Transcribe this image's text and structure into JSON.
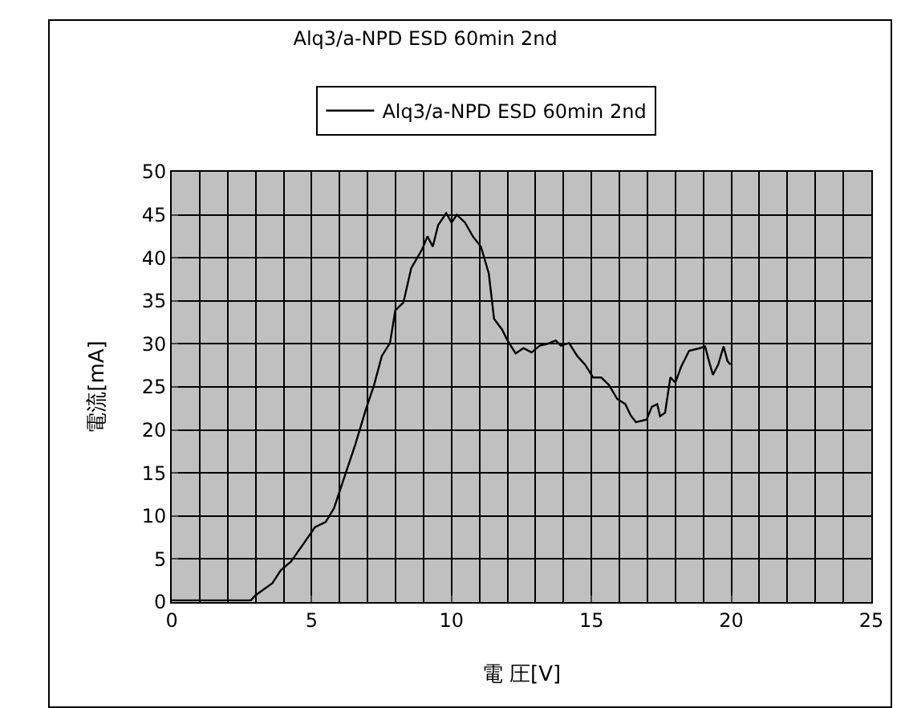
{
  "chart_data": {
    "type": "line",
    "title": "Alq3/a-NPD ESD 60min 2nd",
    "xlabel": "電 圧[V]",
    "ylabel": "電流[mA]",
    "series": [
      {
        "name": "Alq3/a-NPD ESD 60min 2nd",
        "color": "#000000",
        "x": [
          0,
          2.06,
          2.83,
          3.0,
          3.6,
          3.9,
          4.26,
          4.65,
          5.12,
          5.5,
          5.8,
          6.18,
          6.56,
          6.94,
          7.23,
          7.51,
          7.8,
          7.99,
          8.28,
          8.56,
          8.95,
          9.14,
          9.33,
          9.52,
          9.81,
          10.0,
          10.19,
          10.48,
          10.76,
          11.05,
          11.33,
          11.52,
          11.8,
          12.0,
          12.29,
          12.57,
          12.86,
          13.15,
          13.43,
          13.72,
          13.91,
          14.2,
          14.49,
          14.77,
          15.06,
          15.35,
          15.63,
          15.92,
          16.21,
          16.4,
          16.59,
          16.97,
          17.16,
          17.35,
          17.45,
          17.63,
          17.82,
          18.0,
          18.2,
          18.49,
          18.87,
          19.06,
          19.2,
          19.34,
          19.53,
          19.72,
          19.86,
          19.97
        ],
        "values": [
          0.2,
          0.2,
          0.2,
          0.8,
          2.2,
          3.7,
          4.7,
          6.5,
          8.7,
          9.3,
          10.9,
          14.6,
          18.3,
          22.4,
          25.2,
          28.6,
          30.1,
          33.9,
          34.8,
          38.8,
          41.0,
          42.5,
          41.3,
          43.8,
          45.2,
          44.1,
          45.0,
          44.1,
          42.5,
          41.3,
          38.2,
          32.9,
          31.7,
          30.4,
          28.9,
          29.5,
          29.0,
          29.8,
          30.0,
          30.4,
          29.8,
          30.1,
          28.6,
          27.6,
          26.1,
          26.1,
          25.2,
          23.6,
          23.0,
          21.7,
          20.9,
          21.2,
          22.7,
          23.0,
          21.6,
          22.0,
          26.1,
          25.5,
          27.3,
          29.2,
          29.5,
          29.7,
          28.0,
          26.4,
          27.6,
          29.7,
          28.0,
          27.6
        ]
      }
    ],
    "xlim": [
      0,
      25
    ],
    "xticks": [
      0,
      5,
      10,
      15,
      20,
      25
    ],
    "ylim": [
      0,
      50
    ],
    "yticks": [
      0,
      5,
      10,
      15,
      20,
      25,
      30,
      35,
      40,
      45,
      50
    ],
    "grid": true,
    "legend": "top",
    "marker": "none",
    "line_style": "solid"
  }
}
